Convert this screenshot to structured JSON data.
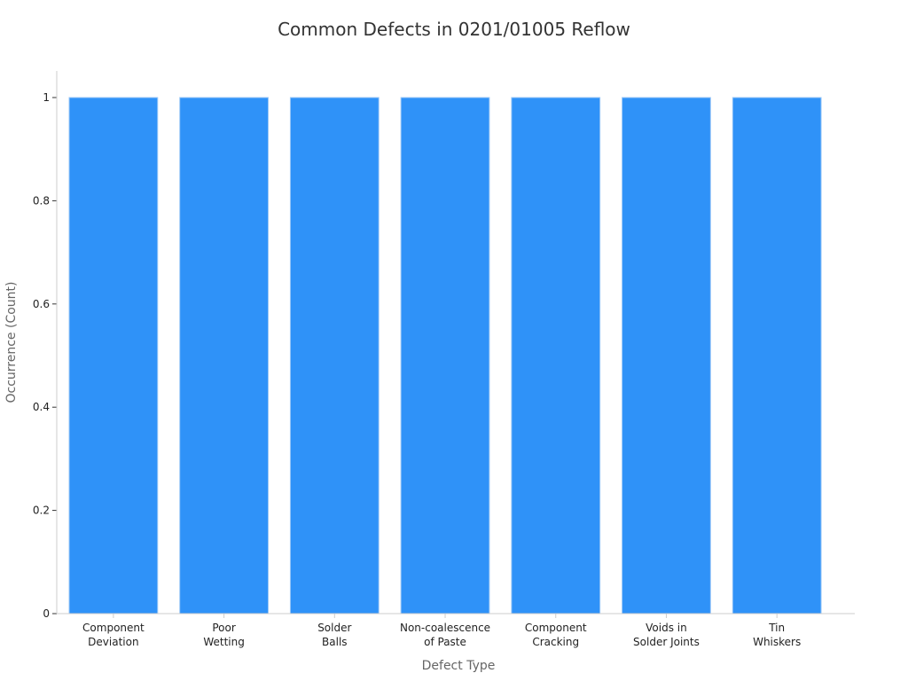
{
  "chart_data": {
    "type": "bar",
    "title": "Common Defects in 0201/01005 Reflow",
    "xlabel": "Defect Type",
    "ylabel": "Occurrence (Count)",
    "categories": [
      [
        "Component",
        "Deviation"
      ],
      [
        "Poor",
        "Wetting"
      ],
      [
        "Solder",
        "Balls"
      ],
      [
        "Non-coalescence",
        "of Paste"
      ],
      [
        "Component",
        "Cracking"
      ],
      [
        "Voids in",
        "Solder Joints"
      ],
      [
        "Tin",
        "Whiskers"
      ]
    ],
    "values": [
      1,
      1,
      1,
      1,
      1,
      1,
      1
    ],
    "yticks": [
      "0",
      "0.2",
      "0.4",
      "0.6",
      "0.8",
      "1"
    ],
    "ytick_values": [
      0,
      0.2,
      0.4,
      0.6,
      0.8,
      1
    ],
    "ylim": [
      0,
      1.05
    ],
    "grid": false,
    "colors": {
      "bar": "#2f92f8",
      "bar_edge": "#9cc8f7",
      "axis": "#cccccc"
    }
  }
}
